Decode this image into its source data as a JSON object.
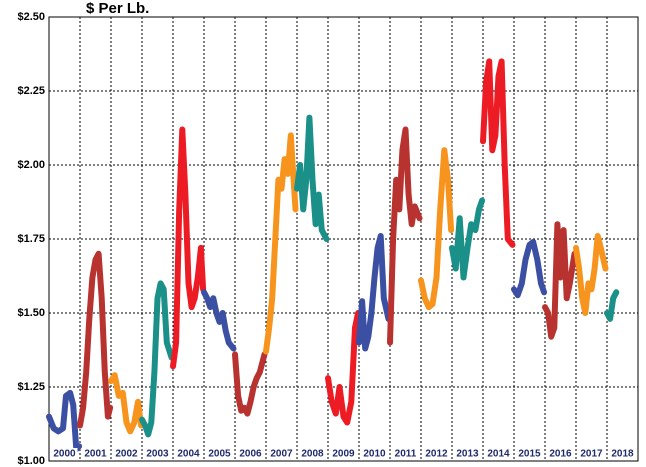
{
  "chart_data": {
    "type": "line",
    "title": "$ Per Lb.",
    "categories": [
      "2000",
      "2001",
      "2002",
      "2003",
      "2004",
      "2005",
      "2006",
      "2007",
      "2008",
      "2009",
      "2010",
      "2011",
      "2012",
      "2013",
      "2014",
      "2015",
      "2016",
      "2017",
      "2018"
    ],
    "xlim": [
      2000,
      2019
    ],
    "ylim": [
      1.0,
      2.5
    ],
    "yticks": [
      {
        "value": 1.0,
        "label": "$1.00"
      },
      {
        "value": 1.25,
        "label": "$1.25"
      },
      {
        "value": 1.5,
        "label": "$1.50"
      },
      {
        "value": 1.75,
        "label": "$1.75"
      },
      {
        "value": 2.0,
        "label": "$2.00"
      },
      {
        "value": 2.25,
        "label": "$2.25"
      },
      {
        "value": 2.5,
        "label": "$2.50"
      }
    ],
    "grid": true,
    "series": [
      {
        "name": "2000",
        "color": "#3b4fa3",
        "x": [
          2000.0,
          2000.15,
          2000.3,
          2000.45,
          2000.55,
          2000.68,
          2000.78,
          2000.88,
          2000.97
        ],
        "values": [
          1.15,
          1.11,
          1.1,
          1.11,
          1.22,
          1.23,
          1.19,
          1.04,
          1.05
        ]
      },
      {
        "name": "2001",
        "color": "#b83230",
        "x": [
          2001.0,
          2001.1,
          2001.2,
          2001.3,
          2001.4,
          2001.5,
          2001.6,
          2001.7,
          2001.8,
          2001.9,
          2001.97
        ],
        "values": [
          1.12,
          1.18,
          1.3,
          1.48,
          1.62,
          1.68,
          1.7,
          1.55,
          1.3,
          1.15,
          1.18
        ]
      },
      {
        "name": "2002",
        "color": "#f7941d",
        "x": [
          2002.0,
          2002.12,
          2002.25,
          2002.38,
          2002.5,
          2002.62,
          2002.75,
          2002.87,
          2002.97
        ],
        "values": [
          1.27,
          1.29,
          1.22,
          1.23,
          1.13,
          1.1,
          1.13,
          1.2,
          1.12
        ]
      },
      {
        "name": "2003",
        "color": "#1a9089",
        "x": [
          2003.0,
          2003.1,
          2003.2,
          2003.3,
          2003.4,
          2003.5,
          2003.6,
          2003.7,
          2003.8,
          2003.95
        ],
        "values": [
          1.14,
          1.12,
          1.09,
          1.13,
          1.3,
          1.55,
          1.6,
          1.58,
          1.4,
          1.35
        ]
      },
      {
        "name": "2004",
        "color": "#ed1c24",
        "x": [
          2004.0,
          2004.1,
          2004.2,
          2004.3,
          2004.4,
          2004.5,
          2004.6,
          2004.7,
          2004.8,
          2004.9,
          2004.97
        ],
        "values": [
          1.32,
          1.4,
          1.85,
          2.12,
          1.9,
          1.6,
          1.52,
          1.55,
          1.62,
          1.72,
          1.58
        ]
      },
      {
        "name": "2005",
        "color": "#3b4fa3",
        "x": [
          2005.0,
          2005.1,
          2005.2,
          2005.3,
          2005.4,
          2005.5,
          2005.6,
          2005.7,
          2005.8,
          2005.95
        ],
        "values": [
          1.57,
          1.55,
          1.52,
          1.55,
          1.5,
          1.47,
          1.5,
          1.44,
          1.4,
          1.38
        ]
      },
      {
        "name": "2006",
        "color": "#b83230",
        "x": [
          2006.0,
          2006.1,
          2006.2,
          2006.3,
          2006.4,
          2006.5,
          2006.6,
          2006.7,
          2006.8,
          2006.95
        ],
        "values": [
          1.36,
          1.22,
          1.17,
          1.18,
          1.16,
          1.2,
          1.25,
          1.28,
          1.3,
          1.36
        ]
      },
      {
        "name": "2007",
        "color": "#f7941d",
        "x": [
          2007.0,
          2007.1,
          2007.2,
          2007.3,
          2007.4,
          2007.5,
          2007.6,
          2007.7,
          2007.8,
          2007.95
        ],
        "values": [
          1.37,
          1.45,
          1.55,
          1.75,
          1.95,
          1.92,
          2.02,
          1.97,
          2.1,
          1.85
        ]
      },
      {
        "name": "2008",
        "color": "#1a9089",
        "x": [
          2008.0,
          2008.1,
          2008.2,
          2008.3,
          2008.4,
          2008.5,
          2008.6,
          2008.7,
          2008.8,
          2008.95
        ],
        "values": [
          1.92,
          2.0,
          1.85,
          1.95,
          2.16,
          1.95,
          1.8,
          1.9,
          1.78,
          1.75
        ]
      },
      {
        "name": "2009",
        "color": "#ed1c24",
        "x": [
          2009.0,
          2009.12,
          2009.25,
          2009.37,
          2009.5,
          2009.62,
          2009.75,
          2009.87,
          2009.97
        ],
        "values": [
          1.28,
          1.2,
          1.16,
          1.25,
          1.15,
          1.13,
          1.2,
          1.45,
          1.5
        ]
      },
      {
        "name": "2010",
        "color": "#3b4fa3",
        "x": [
          2010.0,
          2010.1,
          2010.2,
          2010.3,
          2010.4,
          2010.5,
          2010.6,
          2010.7,
          2010.8,
          2010.95
        ],
        "values": [
          1.4,
          1.54,
          1.38,
          1.42,
          1.5,
          1.62,
          1.72,
          1.76,
          1.55,
          1.48
        ]
      },
      {
        "name": "2011",
        "color": "#b83230",
        "x": [
          2011.0,
          2011.1,
          2011.2,
          2011.3,
          2011.4,
          2011.5,
          2011.6,
          2011.7,
          2011.8,
          2011.95
        ],
        "values": [
          1.4,
          1.75,
          1.95,
          1.85,
          2.05,
          2.12,
          1.9,
          1.8,
          1.86,
          1.82
        ]
      },
      {
        "name": "2012",
        "color": "#f7941d",
        "x": [
          2012.0,
          2012.12,
          2012.25,
          2012.37,
          2012.5,
          2012.62,
          2012.75,
          2012.87,
          2012.97
        ],
        "values": [
          1.61,
          1.55,
          1.52,
          1.53,
          1.62,
          1.85,
          2.05,
          1.95,
          1.78
        ]
      },
      {
        "name": "2013",
        "color": "#1a9089",
        "x": [
          2013.0,
          2013.12,
          2013.25,
          2013.37,
          2013.5,
          2013.62,
          2013.75,
          2013.87,
          2013.97
        ],
        "values": [
          1.72,
          1.65,
          1.82,
          1.62,
          1.72,
          1.8,
          1.78,
          1.85,
          1.88
        ]
      },
      {
        "name": "2014",
        "color": "#ed1c24",
        "x": [
          2014.0,
          2014.1,
          2014.2,
          2014.3,
          2014.4,
          2014.5,
          2014.6,
          2014.7,
          2014.8,
          2014.95
        ],
        "values": [
          2.08,
          2.28,
          2.35,
          2.05,
          2.1,
          2.3,
          2.35,
          2.0,
          1.75,
          1.73
        ]
      },
      {
        "name": "2015",
        "color": "#3b4fa3",
        "x": [
          2015.0,
          2015.12,
          2015.25,
          2015.37,
          2015.5,
          2015.62,
          2015.75,
          2015.87,
          2015.97
        ],
        "values": [
          1.58,
          1.56,
          1.6,
          1.68,
          1.73,
          1.74,
          1.68,
          1.6,
          1.57
        ]
      },
      {
        "name": "2016",
        "color": "#b83230",
        "x": [
          2016.0,
          2016.1,
          2016.2,
          2016.3,
          2016.4,
          2016.5,
          2016.6,
          2016.7,
          2016.8,
          2016.95
        ],
        "values": [
          1.52,
          1.5,
          1.42,
          1.45,
          1.8,
          1.62,
          1.78,
          1.55,
          1.6,
          1.7
        ]
      },
      {
        "name": "2017",
        "color": "#f7941d",
        "x": [
          2017.0,
          2017.1,
          2017.2,
          2017.3,
          2017.4,
          2017.5,
          2017.6,
          2017.7,
          2017.8,
          2017.95
        ],
        "values": [
          1.72,
          1.65,
          1.55,
          1.5,
          1.6,
          1.58,
          1.65,
          1.76,
          1.72,
          1.65
        ]
      },
      {
        "name": "2018",
        "color": "#1a9089",
        "x": [
          2018.0,
          2018.1,
          2018.2,
          2018.3
        ],
        "values": [
          1.5,
          1.48,
          1.55,
          1.57
        ]
      }
    ]
  }
}
